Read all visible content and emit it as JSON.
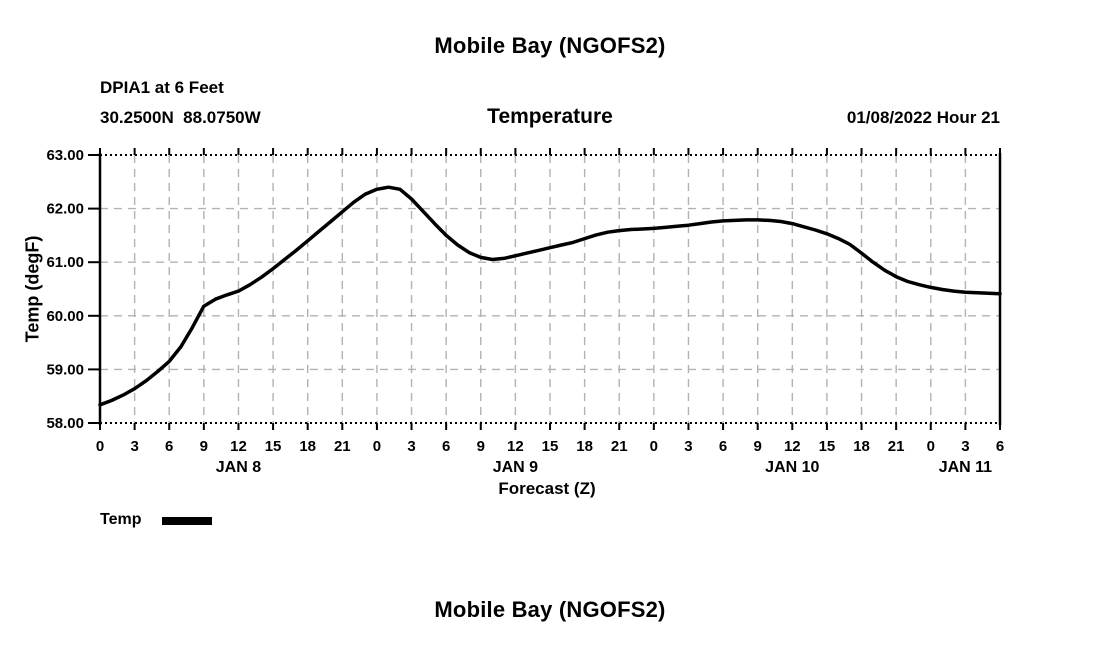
{
  "header": {
    "title": "Mobile Bay (NGOFS2)",
    "station": "DPIA1 at 6 Feet",
    "coordinates": "30.2500N  88.0750W",
    "subtitle": "Temperature",
    "datetime": "01/08/2022 Hour 21"
  },
  "legend": {
    "label": "Temp",
    "color": "#000000"
  },
  "footer": {
    "next_chart_title": "Mobile Bay (NGOFS2)"
  },
  "colors": {
    "line": "#000000",
    "grid": "#b2b2b2",
    "axis": "#000000",
    "background": "#ffffff"
  },
  "chart_data": {
    "type": "line",
    "title": "Mobile Bay (NGOFS2)",
    "subtitle": "Temperature",
    "station": "DPIA1 at 6 Feet",
    "location": "30.2500N  88.0750W",
    "issued": "01/08/2022 Hour 21",
    "xlabel": "Forecast (Z)",
    "ylabel": "Temp (degF)",
    "ylim": [
      58.0,
      63.0
    ],
    "ytick_step": 1.0,
    "ytick_labels": [
      "58.00",
      "59.00",
      "60.00",
      "61.00",
      "62.00",
      "63.00"
    ],
    "xlim_hours": [
      0,
      78
    ],
    "xtick_interval_hours": 3,
    "xtick_labels": [
      "0",
      "3",
      "6",
      "9",
      "12",
      "15",
      "18",
      "21",
      "0",
      "3",
      "6",
      "9",
      "12",
      "15",
      "18",
      "21",
      "0",
      "3",
      "6",
      "9",
      "12",
      "15",
      "18",
      "21",
      "0",
      "3",
      "6"
    ],
    "day_labels": [
      {
        "label": "JAN 8",
        "hour": 12
      },
      {
        "label": "JAN 9",
        "hour": 36
      },
      {
        "label": "JAN 10",
        "hour": 60
      },
      {
        "label": "JAN 11",
        "hour": 75
      }
    ],
    "grid": true,
    "legend_position": "bottom-left",
    "series": [
      {
        "name": "Temp",
        "color": "#000000",
        "x_hours": [
          0,
          1,
          2,
          3,
          4,
          5,
          6,
          7,
          8,
          9,
          10,
          11,
          12,
          13,
          14,
          15,
          16,
          17,
          18,
          19,
          20,
          21,
          22,
          23,
          24,
          25,
          26,
          27,
          28,
          29,
          30,
          31,
          32,
          33,
          34,
          35,
          36,
          37,
          38,
          39,
          40,
          41,
          42,
          43,
          44,
          45,
          46,
          47,
          48,
          49,
          50,
          51,
          52,
          53,
          54,
          55,
          56,
          57,
          58,
          59,
          60,
          61,
          62,
          63,
          64,
          65,
          66,
          67,
          68,
          69,
          70,
          71,
          72,
          73,
          74,
          75,
          76,
          77,
          78
        ],
        "values": [
          58.34,
          58.42,
          58.52,
          58.64,
          58.79,
          58.96,
          59.15,
          59.42,
          59.78,
          60.18,
          60.31,
          60.39,
          60.46,
          60.58,
          60.72,
          60.88,
          61.05,
          61.22,
          61.4,
          61.58,
          61.76,
          61.94,
          62.12,
          62.27,
          62.36,
          62.4,
          62.36,
          62.18,
          61.95,
          61.72,
          61.5,
          61.32,
          61.18,
          61.09,
          61.05,
          61.07,
          61.12,
          61.17,
          61.22,
          61.27,
          61.32,
          61.37,
          61.44,
          61.51,
          61.56,
          61.59,
          61.61,
          61.62,
          61.63,
          61.65,
          61.67,
          61.69,
          61.72,
          61.75,
          61.77,
          61.78,
          61.79,
          61.79,
          61.78,
          61.76,
          61.72,
          61.66,
          61.6,
          61.53,
          61.44,
          61.33,
          61.17,
          61.0,
          60.85,
          60.73,
          60.64,
          60.58,
          60.53,
          60.49,
          60.46,
          60.44,
          60.43,
          60.42,
          60.41
        ]
      }
    ]
  }
}
